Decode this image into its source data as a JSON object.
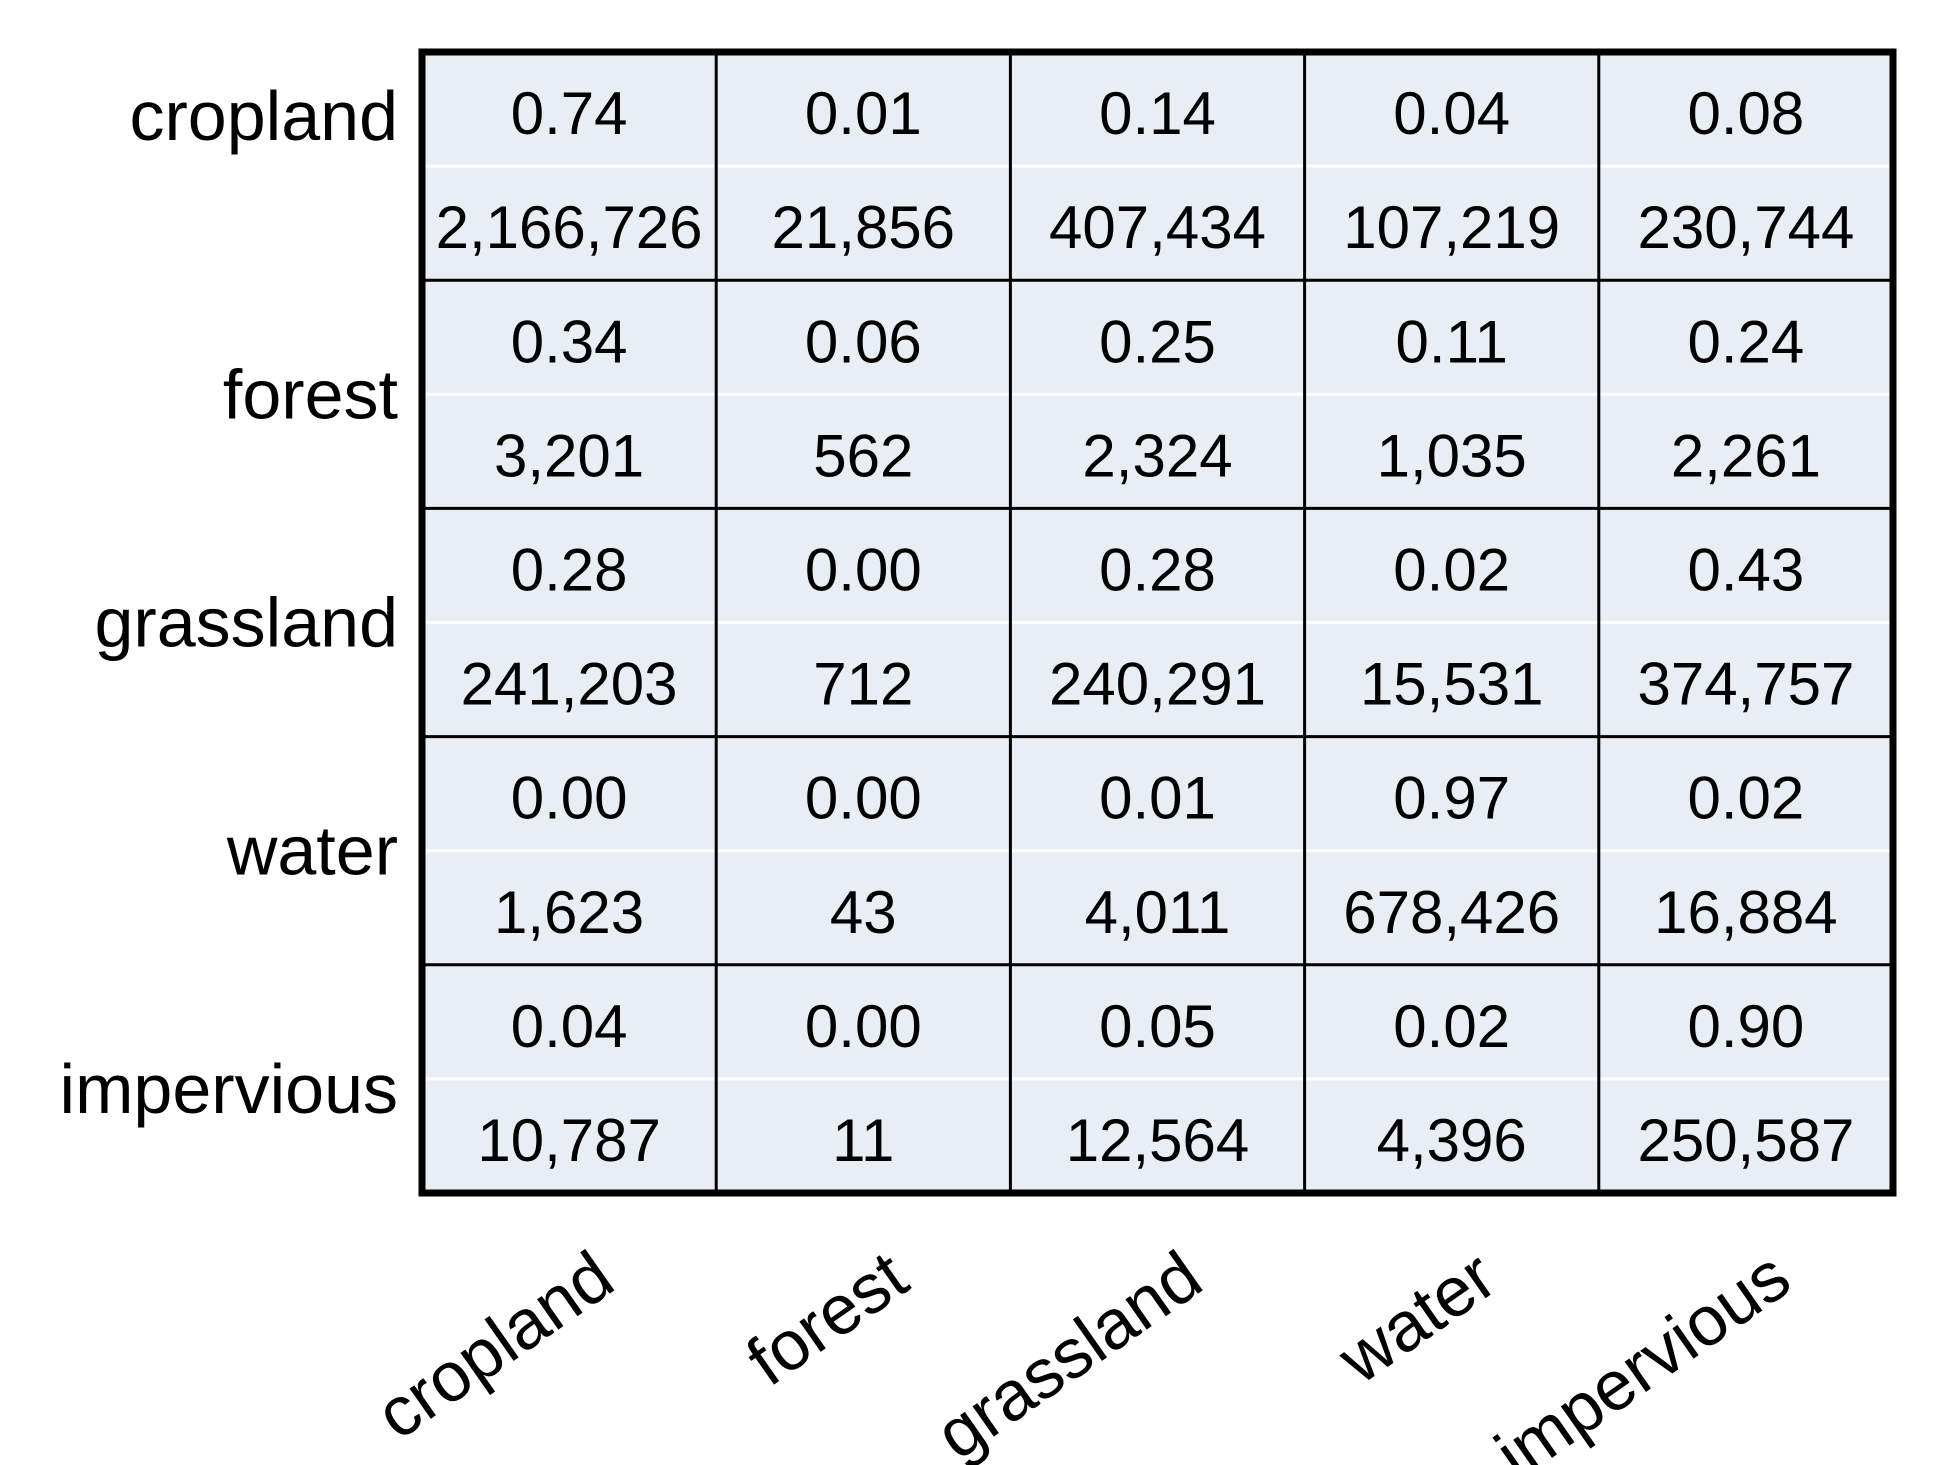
{
  "chart_data": {
    "type": "table",
    "rows": [
      "cropland",
      "forest",
      "grassland",
      "water",
      "impervious"
    ],
    "columns": [
      "cropland",
      "forest",
      "grassland",
      "water",
      "impervious"
    ],
    "proportions": [
      [
        "0.74",
        "0.01",
        "0.14",
        "0.04",
        "0.08"
      ],
      [
        "0.34",
        "0.06",
        "0.25",
        "0.11",
        "0.24"
      ],
      [
        "0.28",
        "0.00",
        "0.28",
        "0.02",
        "0.43"
      ],
      [
        "0.00",
        "0.00",
        "0.01",
        "0.97",
        "0.02"
      ],
      [
        "0.04",
        "0.00",
        "0.05",
        "0.02",
        "0.90"
      ]
    ],
    "counts": [
      [
        "2,166,726",
        "21,856",
        "407,434",
        "107,219",
        "230,744"
      ],
      [
        "3,201",
        "562",
        "2,324",
        "1,035",
        "2,261"
      ],
      [
        "241,203",
        "712",
        "240,291",
        "15,531",
        "374,757"
      ],
      [
        "1,623",
        "43",
        "4,011",
        "678,426",
        "16,884"
      ],
      [
        "10,787",
        "11",
        "12,564",
        "4,396",
        "250,587"
      ]
    ],
    "cell_background": "#e9edf4",
    "inner_separator_color": "#ffffff",
    "grid_line_color": "#000000"
  }
}
